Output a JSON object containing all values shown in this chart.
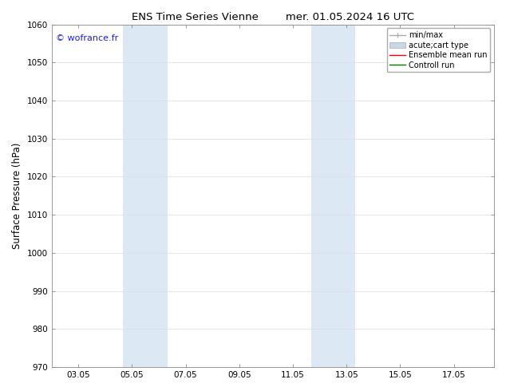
{
  "title_left": "ENS Time Series Vienne",
  "title_right": "mer. 01.05.2024 16 UTC",
  "ylabel": "Surface Pressure (hPa)",
  "ylim": [
    970,
    1060
  ],
  "yticks": [
    970,
    980,
    990,
    1000,
    1010,
    1020,
    1030,
    1040,
    1050,
    1060
  ],
  "xlim": [
    1.0,
    17.5
  ],
  "xtick_labels": [
    "03.05",
    "05.05",
    "07.05",
    "09.05",
    "11.05",
    "13.05",
    "15.05",
    "17.05"
  ],
  "xtick_positions": [
    2,
    4,
    6,
    8,
    10,
    12,
    14,
    16
  ],
  "watermark": "© wofrance.fr",
  "watermark_color": "#1a1aff",
  "bg_color": "#ffffff",
  "plot_bg_color": "#ffffff",
  "shaded_bands": [
    {
      "x_start": 3.67,
      "x_end": 5.33,
      "color": "#dce9f5"
    },
    {
      "x_start": 10.67,
      "x_end": 12.33,
      "color": "#dce9f5"
    }
  ],
  "legend_entries": [
    {
      "label": "min/max",
      "color": "#aaaaaa",
      "lw": 1.0,
      "type": "minmax"
    },
    {
      "label": "acute;cart type",
      "color": "#c8d8e8",
      "lw": 6,
      "type": "band"
    },
    {
      "label": "Ensemble mean run",
      "color": "#ff0000",
      "lw": 1.0,
      "type": "line"
    },
    {
      "label": "Controll run",
      "color": "#007700",
      "lw": 1.0,
      "type": "line"
    }
  ],
  "grid_color": "#dddddd",
  "grid_lw": 0.5,
  "tick_font_size": 7.5,
  "label_font_size": 8.5,
  "title_font_size": 9.5,
  "spine_color": "#888888"
}
